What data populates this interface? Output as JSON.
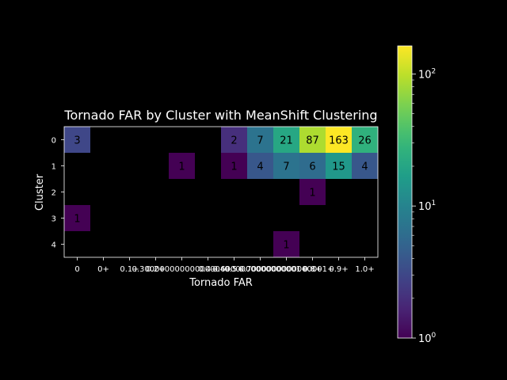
{
  "chart_data": {
    "type": "heatmap",
    "title": "Tornado FAR by Cluster with MeanShift Clustering",
    "xlabel": "Tornado FAR",
    "ylabel": "Cluster",
    "x_tick_labels": [
      "0",
      "0+",
      "0.1+",
      "0.2+",
      "0.30000000000000004+",
      "0.4+",
      "0.5+",
      "0.6000000000000001+",
      "0.7000000000000001+",
      "0.8+",
      "0.9+",
      "1.0+"
    ],
    "y_tick_labels": [
      "0",
      "1",
      "2",
      "3",
      "4"
    ],
    "cells": [
      {
        "row": 0,
        "col": 0,
        "value": 3
      },
      {
        "row": 0,
        "col": 6,
        "value": 2
      },
      {
        "row": 0,
        "col": 7,
        "value": 7
      },
      {
        "row": 0,
        "col": 8,
        "value": 21
      },
      {
        "row": 0,
        "col": 9,
        "value": 87
      },
      {
        "row": 0,
        "col": 10,
        "value": 163
      },
      {
        "row": 0,
        "col": 11,
        "value": 26
      },
      {
        "row": 1,
        "col": 4,
        "value": 1
      },
      {
        "row": 1,
        "col": 6,
        "value": 1
      },
      {
        "row": 1,
        "col": 7,
        "value": 4
      },
      {
        "row": 1,
        "col": 8,
        "value": 7
      },
      {
        "row": 1,
        "col": 9,
        "value": 6
      },
      {
        "row": 1,
        "col": 10,
        "value": 15
      },
      {
        "row": 1,
        "col": 11,
        "value": 4
      },
      {
        "row": 2,
        "col": 9,
        "value": 1
      },
      {
        "row": 3,
        "col": 0,
        "value": 1
      },
      {
        "row": 4,
        "col": 8,
        "value": 1
      }
    ],
    "colorbar": {
      "scale": "log",
      "colormap": "viridis",
      "range": [
        1,
        163
      ],
      "ticks": [
        {
          "value": 1,
          "base": "10",
          "exp": "0"
        },
        {
          "value": 10,
          "base": "10",
          "exp": "1"
        },
        {
          "value": 100,
          "base": "10",
          "exp": "2"
        }
      ]
    },
    "colors": {
      "background": "#000000",
      "foreground": "#ffffff"
    },
    "grid": false,
    "legend": "none"
  }
}
